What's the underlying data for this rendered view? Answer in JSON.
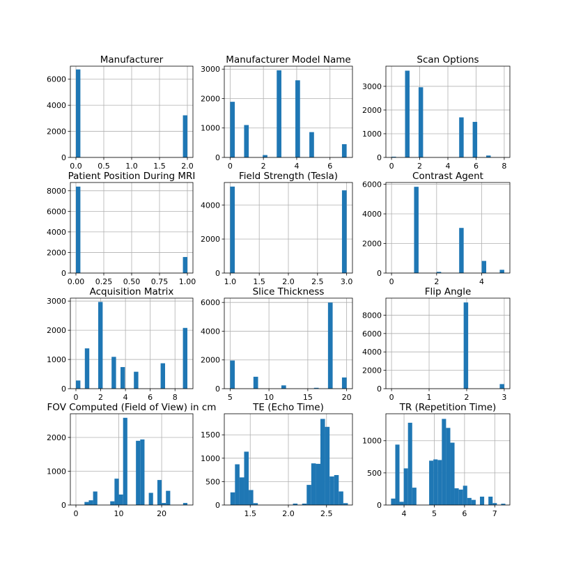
{
  "chart_data": [
    {
      "type": "bar",
      "title": "Manufacturer",
      "xlim": [
        -0.1,
        2.1
      ],
      "ylim": [
        0,
        7000
      ],
      "xticks": [
        0.0,
        0.5,
        1.0,
        1.5,
        2.0
      ],
      "xtick_labels": [
        "0.0",
        "0.5",
        "1.0",
        "1.5",
        "2.0"
      ],
      "yticks": [
        0,
        2000,
        4000,
        6000
      ],
      "ytick_labels": [
        "0",
        "2000",
        "4000",
        "6000"
      ],
      "bars": [
        {
          "x0": 0.0,
          "x1": 0.08,
          "y": 6750
        },
        {
          "x0": 1.92,
          "x1": 2.0,
          "y": 3230
        }
      ],
      "grid": true,
      "color": "#1f77b4"
    },
    {
      "type": "bar",
      "title": "Manufacturer Model Name",
      "xlim": [
        -0.35,
        7.35
      ],
      "ylim": [
        0,
        3100
      ],
      "xticks": [
        0,
        2,
        4,
        6
      ],
      "xtick_labels": [
        "0",
        "2",
        "4",
        "6"
      ],
      "yticks": [
        0,
        1000,
        2000,
        3000
      ],
      "ytick_labels": [
        "0",
        "1000",
        "2000",
        "3000"
      ],
      "bars": [
        {
          "x0": 0.0,
          "x1": 0.28,
          "y": 1890
        },
        {
          "x0": 0.84,
          "x1": 1.12,
          "y": 1100
        },
        {
          "x0": 1.96,
          "x1": 2.24,
          "y": 80
        },
        {
          "x0": 2.8,
          "x1": 3.08,
          "y": 2960
        },
        {
          "x0": 3.92,
          "x1": 4.2,
          "y": 2620
        },
        {
          "x0": 4.76,
          "x1": 5.04,
          "y": 860
        },
        {
          "x0": 6.72,
          "x1": 7.0,
          "y": 450
        }
      ],
      "grid": true,
      "color": "#1f77b4"
    },
    {
      "type": "bar",
      "title": "Scan Options",
      "xlim": [
        -0.4,
        8.4
      ],
      "ylim": [
        0,
        3850
      ],
      "xticks": [
        0,
        2,
        4,
        6,
        8
      ],
      "xtick_labels": [
        "0",
        "2",
        "4",
        "6",
        "8"
      ],
      "yticks": [
        0,
        1000,
        2000,
        3000
      ],
      "ytick_labels": [
        "0",
        "1000",
        "2000",
        "3000"
      ],
      "bars": [
        {
          "x0": 0.0,
          "x1": 0.32,
          "y": 30
        },
        {
          "x0": 0.96,
          "x1": 1.28,
          "y": 3660
        },
        {
          "x0": 1.92,
          "x1": 2.24,
          "y": 2960
        },
        {
          "x0": 4.8,
          "x1": 5.12,
          "y": 1690
        },
        {
          "x0": 5.76,
          "x1": 6.08,
          "y": 1500
        },
        {
          "x0": 6.72,
          "x1": 7.04,
          "y": 80
        }
      ],
      "grid": true,
      "color": "#1f77b4"
    },
    {
      "type": "bar",
      "title": "Patient Position During MRI",
      "xlim": [
        -0.05,
        1.05
      ],
      "ylim": [
        0,
        8800
      ],
      "xticks": [
        0.0,
        0.25,
        0.5,
        0.75,
        1.0
      ],
      "xtick_labels": [
        "0.00",
        "0.25",
        "0.50",
        "0.75",
        "1.00"
      ],
      "yticks": [
        0,
        2000,
        4000,
        6000,
        8000
      ],
      "ytick_labels": [
        "0",
        "2000",
        "4000",
        "6000",
        "8000"
      ],
      "bars": [
        {
          "x0": 0.0,
          "x1": 0.04,
          "y": 8400
        },
        {
          "x0": 0.96,
          "x1": 1.0,
          "y": 1560
        }
      ],
      "grid": true,
      "color": "#1f77b4"
    },
    {
      "type": "bar",
      "title": "Field Strength (Tesla)",
      "xlim": [
        0.9,
        3.1
      ],
      "ylim": [
        0,
        5320
      ],
      "xticks": [
        1.0,
        1.5,
        2.0,
        2.5,
        3.0
      ],
      "xtick_labels": [
        "1.0",
        "1.5",
        "2.0",
        "2.5",
        "3.0"
      ],
      "yticks": [
        0,
        2000,
        4000
      ],
      "ytick_labels": [
        "0",
        "2000",
        "4000"
      ],
      "bars": [
        {
          "x0": 1.0,
          "x1": 1.08,
          "y": 5080
        },
        {
          "x0": 2.92,
          "x1": 3.0,
          "y": 4860
        }
      ],
      "grid": true,
      "color": "#1f77b4"
    },
    {
      "type": "bar",
      "title": "Contrast Agent",
      "xlim": [
        -0.25,
        5.25
      ],
      "ylim": [
        0,
        6120
      ],
      "xticks": [
        0,
        2,
        4
      ],
      "xtick_labels": [
        "0",
        "2",
        "4"
      ],
      "yticks": [
        0,
        2000,
        4000,
        6000
      ],
      "ytick_labels": [
        "0",
        "2000",
        "4000",
        "6000"
      ],
      "bars": [
        {
          "x0": 1.0,
          "x1": 1.2,
          "y": 5830
        },
        {
          "x0": 2.0,
          "x1": 2.2,
          "y": 80
        },
        {
          "x0": 3.0,
          "x1": 3.2,
          "y": 3050
        },
        {
          "x0": 4.0,
          "x1": 4.2,
          "y": 820
        },
        {
          "x0": 4.8,
          "x1": 5.0,
          "y": 220
        }
      ],
      "grid": true,
      "color": "#1f77b4"
    },
    {
      "type": "bar",
      "title": "Acquisition Matrix",
      "xlim": [
        -0.45,
        9.45
      ],
      "ylim": [
        0,
        3100
      ],
      "xticks": [
        0,
        2,
        4,
        6,
        8
      ],
      "xtick_labels": [
        "0",
        "2",
        "4",
        "6",
        "8"
      ],
      "yticks": [
        0,
        1000,
        2000,
        3000
      ],
      "ytick_labels": [
        "0",
        "1000",
        "2000",
        "3000"
      ],
      "bars": [
        {
          "x0": 0.0,
          "x1": 0.36,
          "y": 280
        },
        {
          "x0": 0.72,
          "x1": 1.08,
          "y": 1380
        },
        {
          "x0": 1.8,
          "x1": 2.16,
          "y": 2970
        },
        {
          "x0": 2.88,
          "x1": 3.24,
          "y": 1090
        },
        {
          "x0": 3.6,
          "x1": 3.96,
          "y": 740
        },
        {
          "x0": 4.68,
          "x1": 5.04,
          "y": 580
        },
        {
          "x0": 6.84,
          "x1": 7.2,
          "y": 870
        },
        {
          "x0": 8.64,
          "x1": 9.0,
          "y": 2080
        }
      ],
      "grid": true,
      "color": "#1f77b4"
    },
    {
      "type": "bar",
      "title": "Slice Thickness",
      "xlim": [
        4.25,
        20.75
      ],
      "ylim": [
        0,
        6300
      ],
      "xticks": [
        5,
        10,
        15,
        20
      ],
      "xtick_labels": [
        "5",
        "10",
        "15",
        "20"
      ],
      "yticks": [
        0,
        2000,
        4000,
        6000
      ],
      "ytick_labels": [
        "0",
        "2000",
        "4000",
        "6000"
      ],
      "bars": [
        {
          "x0": 5.0,
          "x1": 5.6,
          "y": 1960
        },
        {
          "x0": 8.0,
          "x1": 8.6,
          "y": 830
        },
        {
          "x0": 11.6,
          "x1": 12.2,
          "y": 230
        },
        {
          "x0": 15.8,
          "x1": 16.4,
          "y": 60
        },
        {
          "x0": 17.6,
          "x1": 18.2,
          "y": 5990
        },
        {
          "x0": 19.4,
          "x1": 20.0,
          "y": 780
        }
      ],
      "grid": true,
      "color": "#1f77b4"
    },
    {
      "type": "bar",
      "title": "Flip Angle",
      "xlim": [
        -0.15,
        3.15
      ],
      "ylim": [
        0,
        9850
      ],
      "xticks": [
        0,
        1,
        2,
        3
      ],
      "xtick_labels": [
        "0",
        "1",
        "2",
        "3"
      ],
      "yticks": [
        0,
        2000,
        4000,
        6000,
        8000
      ],
      "ytick_labels": [
        "0",
        "2000",
        "4000",
        "6000",
        "8000"
      ],
      "bars": [
        {
          "x0": 1.92,
          "x1": 2.04,
          "y": 9380
        },
        {
          "x0": 2.88,
          "x1": 3.0,
          "y": 500
        }
      ],
      "grid": true,
      "color": "#1f77b4"
    },
    {
      "type": "bar",
      "title": "FOV Computed (Field of View) in cm",
      "xlim": [
        -1.3,
        27.3
      ],
      "ylim": [
        0,
        2700
      ],
      "xticks": [
        0,
        10,
        20
      ],
      "xtick_labels": [
        "0",
        "10",
        "20"
      ],
      "yticks": [
        0,
        1000,
        2000
      ],
      "ytick_labels": [
        "0",
        "1000",
        "2000"
      ],
      "bars": [
        {
          "x0": 2.0,
          "x1": 3.0,
          "y": 90
        },
        {
          "x0": 3.0,
          "x1": 4.0,
          "y": 140
        },
        {
          "x0": 4.0,
          "x1": 5.0,
          "y": 400
        },
        {
          "x0": 8.0,
          "x1": 9.0,
          "y": 110
        },
        {
          "x0": 9.0,
          "x1": 10.0,
          "y": 780
        },
        {
          "x0": 10.0,
          "x1": 11.0,
          "y": 310
        },
        {
          "x0": 11.0,
          "x1": 12.0,
          "y": 2580
        },
        {
          "x0": 14.0,
          "x1": 15.0,
          "y": 1900
        },
        {
          "x0": 15.0,
          "x1": 16.0,
          "y": 1940
        },
        {
          "x0": 17.0,
          "x1": 18.0,
          "y": 360
        },
        {
          "x0": 19.0,
          "x1": 20.0,
          "y": 740
        },
        {
          "x0": 20.0,
          "x1": 21.0,
          "y": 60
        },
        {
          "x0": 21.0,
          "x1": 22.0,
          "y": 420
        },
        {
          "x0": 25.0,
          "x1": 26.0,
          "y": 60
        }
      ],
      "grid": true,
      "color": "#1f77b4"
    },
    {
      "type": "bar",
      "title": "TE (Echo Time)",
      "xlim": [
        1.16,
        2.84
      ],
      "ylim": [
        0,
        1950
      ],
      "xticks": [
        1.5,
        2.0,
        2.5
      ],
      "xtick_labels": [
        "1.5",
        "2.0",
        "2.5"
      ],
      "yticks": [
        0,
        500,
        1000,
        1500
      ],
      "ytick_labels": [
        "0",
        "500",
        "1000",
        "1500"
      ],
      "bars": [
        {
          "x0": 1.24,
          "x1": 1.3,
          "y": 270
        },
        {
          "x0": 1.3,
          "x1": 1.36,
          "y": 870
        },
        {
          "x0": 1.36,
          "x1": 1.42,
          "y": 590
        },
        {
          "x0": 1.42,
          "x1": 1.48,
          "y": 1140
        },
        {
          "x0": 1.48,
          "x1": 1.54,
          "y": 320
        },
        {
          "x0": 1.54,
          "x1": 1.6,
          "y": 40
        },
        {
          "x0": 2.06,
          "x1": 2.12,
          "y": 30
        },
        {
          "x0": 2.18,
          "x1": 2.24,
          "y": 30
        },
        {
          "x0": 2.24,
          "x1": 2.3,
          "y": 430
        },
        {
          "x0": 2.3,
          "x1": 2.36,
          "y": 890
        },
        {
          "x0": 2.36,
          "x1": 2.42,
          "y": 880
        },
        {
          "x0": 2.42,
          "x1": 2.48,
          "y": 1840
        },
        {
          "x0": 2.48,
          "x1": 2.54,
          "y": 1670
        },
        {
          "x0": 2.54,
          "x1": 2.6,
          "y": 610
        },
        {
          "x0": 2.6,
          "x1": 2.66,
          "y": 640
        },
        {
          "x0": 2.66,
          "x1": 2.72,
          "y": 290
        },
        {
          "x0": 2.72,
          "x1": 2.78,
          "y": 40
        }
      ],
      "grid": true,
      "color": "#1f77b4"
    },
    {
      "type": "bar",
      "title": "TR (Repetition Time)",
      "xlim": [
        3.4,
        7.5
      ],
      "ylim": [
        0,
        1420
      ],
      "xticks": [
        4,
        5,
        6,
        7
      ],
      "xtick_labels": [
        "4",
        "5",
        "6",
        "7"
      ],
      "yticks": [
        0,
        500,
        1000
      ],
      "ytick_labels": [
        "0",
        "500",
        "1000"
      ],
      "bars": [
        {
          "x0": 3.57,
          "x1": 3.71,
          "y": 100
        },
        {
          "x0": 3.71,
          "x1": 3.85,
          "y": 940
        },
        {
          "x0": 3.85,
          "x1": 3.99,
          "y": 50
        },
        {
          "x0": 3.99,
          "x1": 4.13,
          "y": 570
        },
        {
          "x0": 4.13,
          "x1": 4.27,
          "y": 1280
        },
        {
          "x0": 4.27,
          "x1": 4.41,
          "y": 270
        },
        {
          "x0": 4.83,
          "x1": 4.97,
          "y": 690
        },
        {
          "x0": 4.97,
          "x1": 5.11,
          "y": 710
        },
        {
          "x0": 5.11,
          "x1": 5.25,
          "y": 700
        },
        {
          "x0": 5.25,
          "x1": 5.39,
          "y": 1340
        },
        {
          "x0": 5.39,
          "x1": 5.53,
          "y": 1200
        },
        {
          "x0": 5.53,
          "x1": 5.67,
          "y": 970
        },
        {
          "x0": 5.67,
          "x1": 5.81,
          "y": 260
        },
        {
          "x0": 5.81,
          "x1": 5.95,
          "y": 240
        },
        {
          "x0": 5.95,
          "x1": 6.09,
          "y": 300
        },
        {
          "x0": 6.09,
          "x1": 6.23,
          "y": 110
        },
        {
          "x0": 6.23,
          "x1": 6.37,
          "y": 80
        },
        {
          "x0": 6.51,
          "x1": 6.65,
          "y": 130
        },
        {
          "x0": 6.79,
          "x1": 6.93,
          "y": 130
        },
        {
          "x0": 6.93,
          "x1": 7.07,
          "y": 30
        },
        {
          "x0": 7.21,
          "x1": 7.35,
          "y": 20
        }
      ],
      "grid": true,
      "color": "#1f77b4"
    }
  ]
}
